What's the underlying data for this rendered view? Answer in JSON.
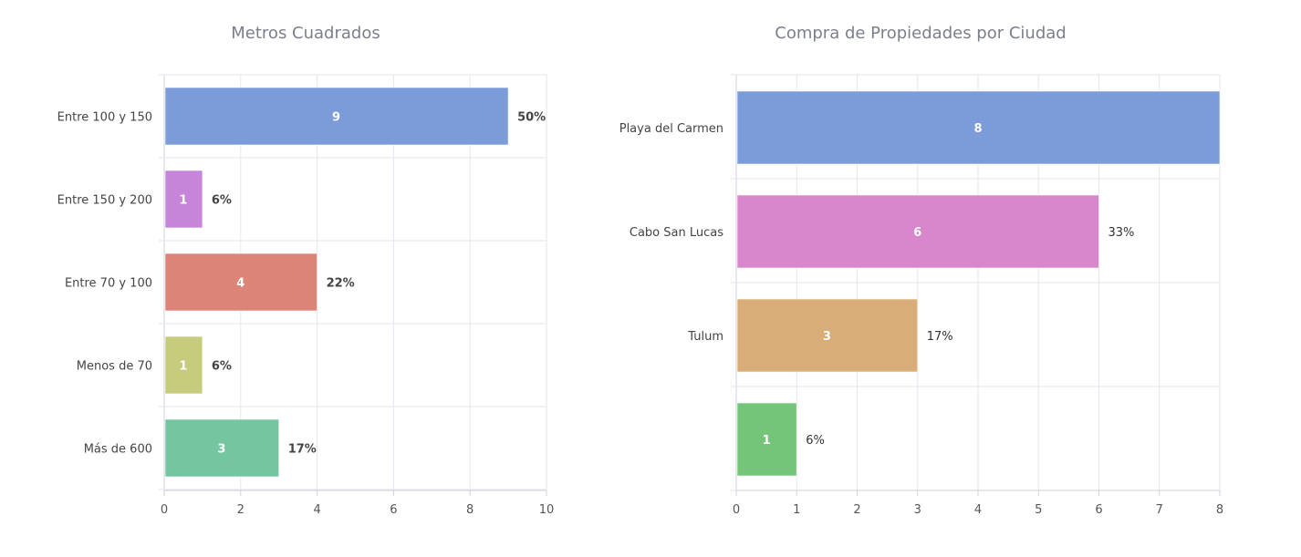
{
  "chart_data": [
    {
      "type": "bar",
      "orientation": "horizontal",
      "title": "Metros Cuadrados",
      "categories": [
        "Entre 100 y 150",
        "Entre 150 y 200",
        "Entre 70 y 100",
        "Menos de 70",
        "Más de 600"
      ],
      "values": [
        9,
        1,
        4,
        1,
        3
      ],
      "percent_labels": [
        "50%",
        "6%",
        "22%",
        "6%",
        "17%"
      ],
      "colors": [
        "#7b9cd9",
        "#c785d9",
        "#dd8478",
        "#c6cc7b",
        "#74c6a0"
      ],
      "xlim": [
        0,
        10
      ],
      "xticks": [
        0,
        2,
        4,
        6,
        8,
        10
      ],
      "grid": true,
      "xlabel": "",
      "ylabel": ""
    },
    {
      "type": "bar",
      "orientation": "horizontal",
      "title": "Compra de Propiedades por Ciudad",
      "categories": [
        "Playa del Carmen",
        "Cabo San Lucas",
        "Tulum",
        ""
      ],
      "values": [
        8,
        6,
        3,
        1
      ],
      "percent_labels": [
        "",
        "33%",
        "17%",
        "6%"
      ],
      "colors": [
        "#7b9cd9",
        "#d987cd",
        "#d9ad78",
        "#74c47a"
      ],
      "xlim": [
        0,
        8
      ],
      "xticks": [
        0,
        1,
        2,
        3,
        4,
        5,
        6,
        7,
        8
      ],
      "grid": true,
      "xlabel": "",
      "ylabel": ""
    }
  ]
}
